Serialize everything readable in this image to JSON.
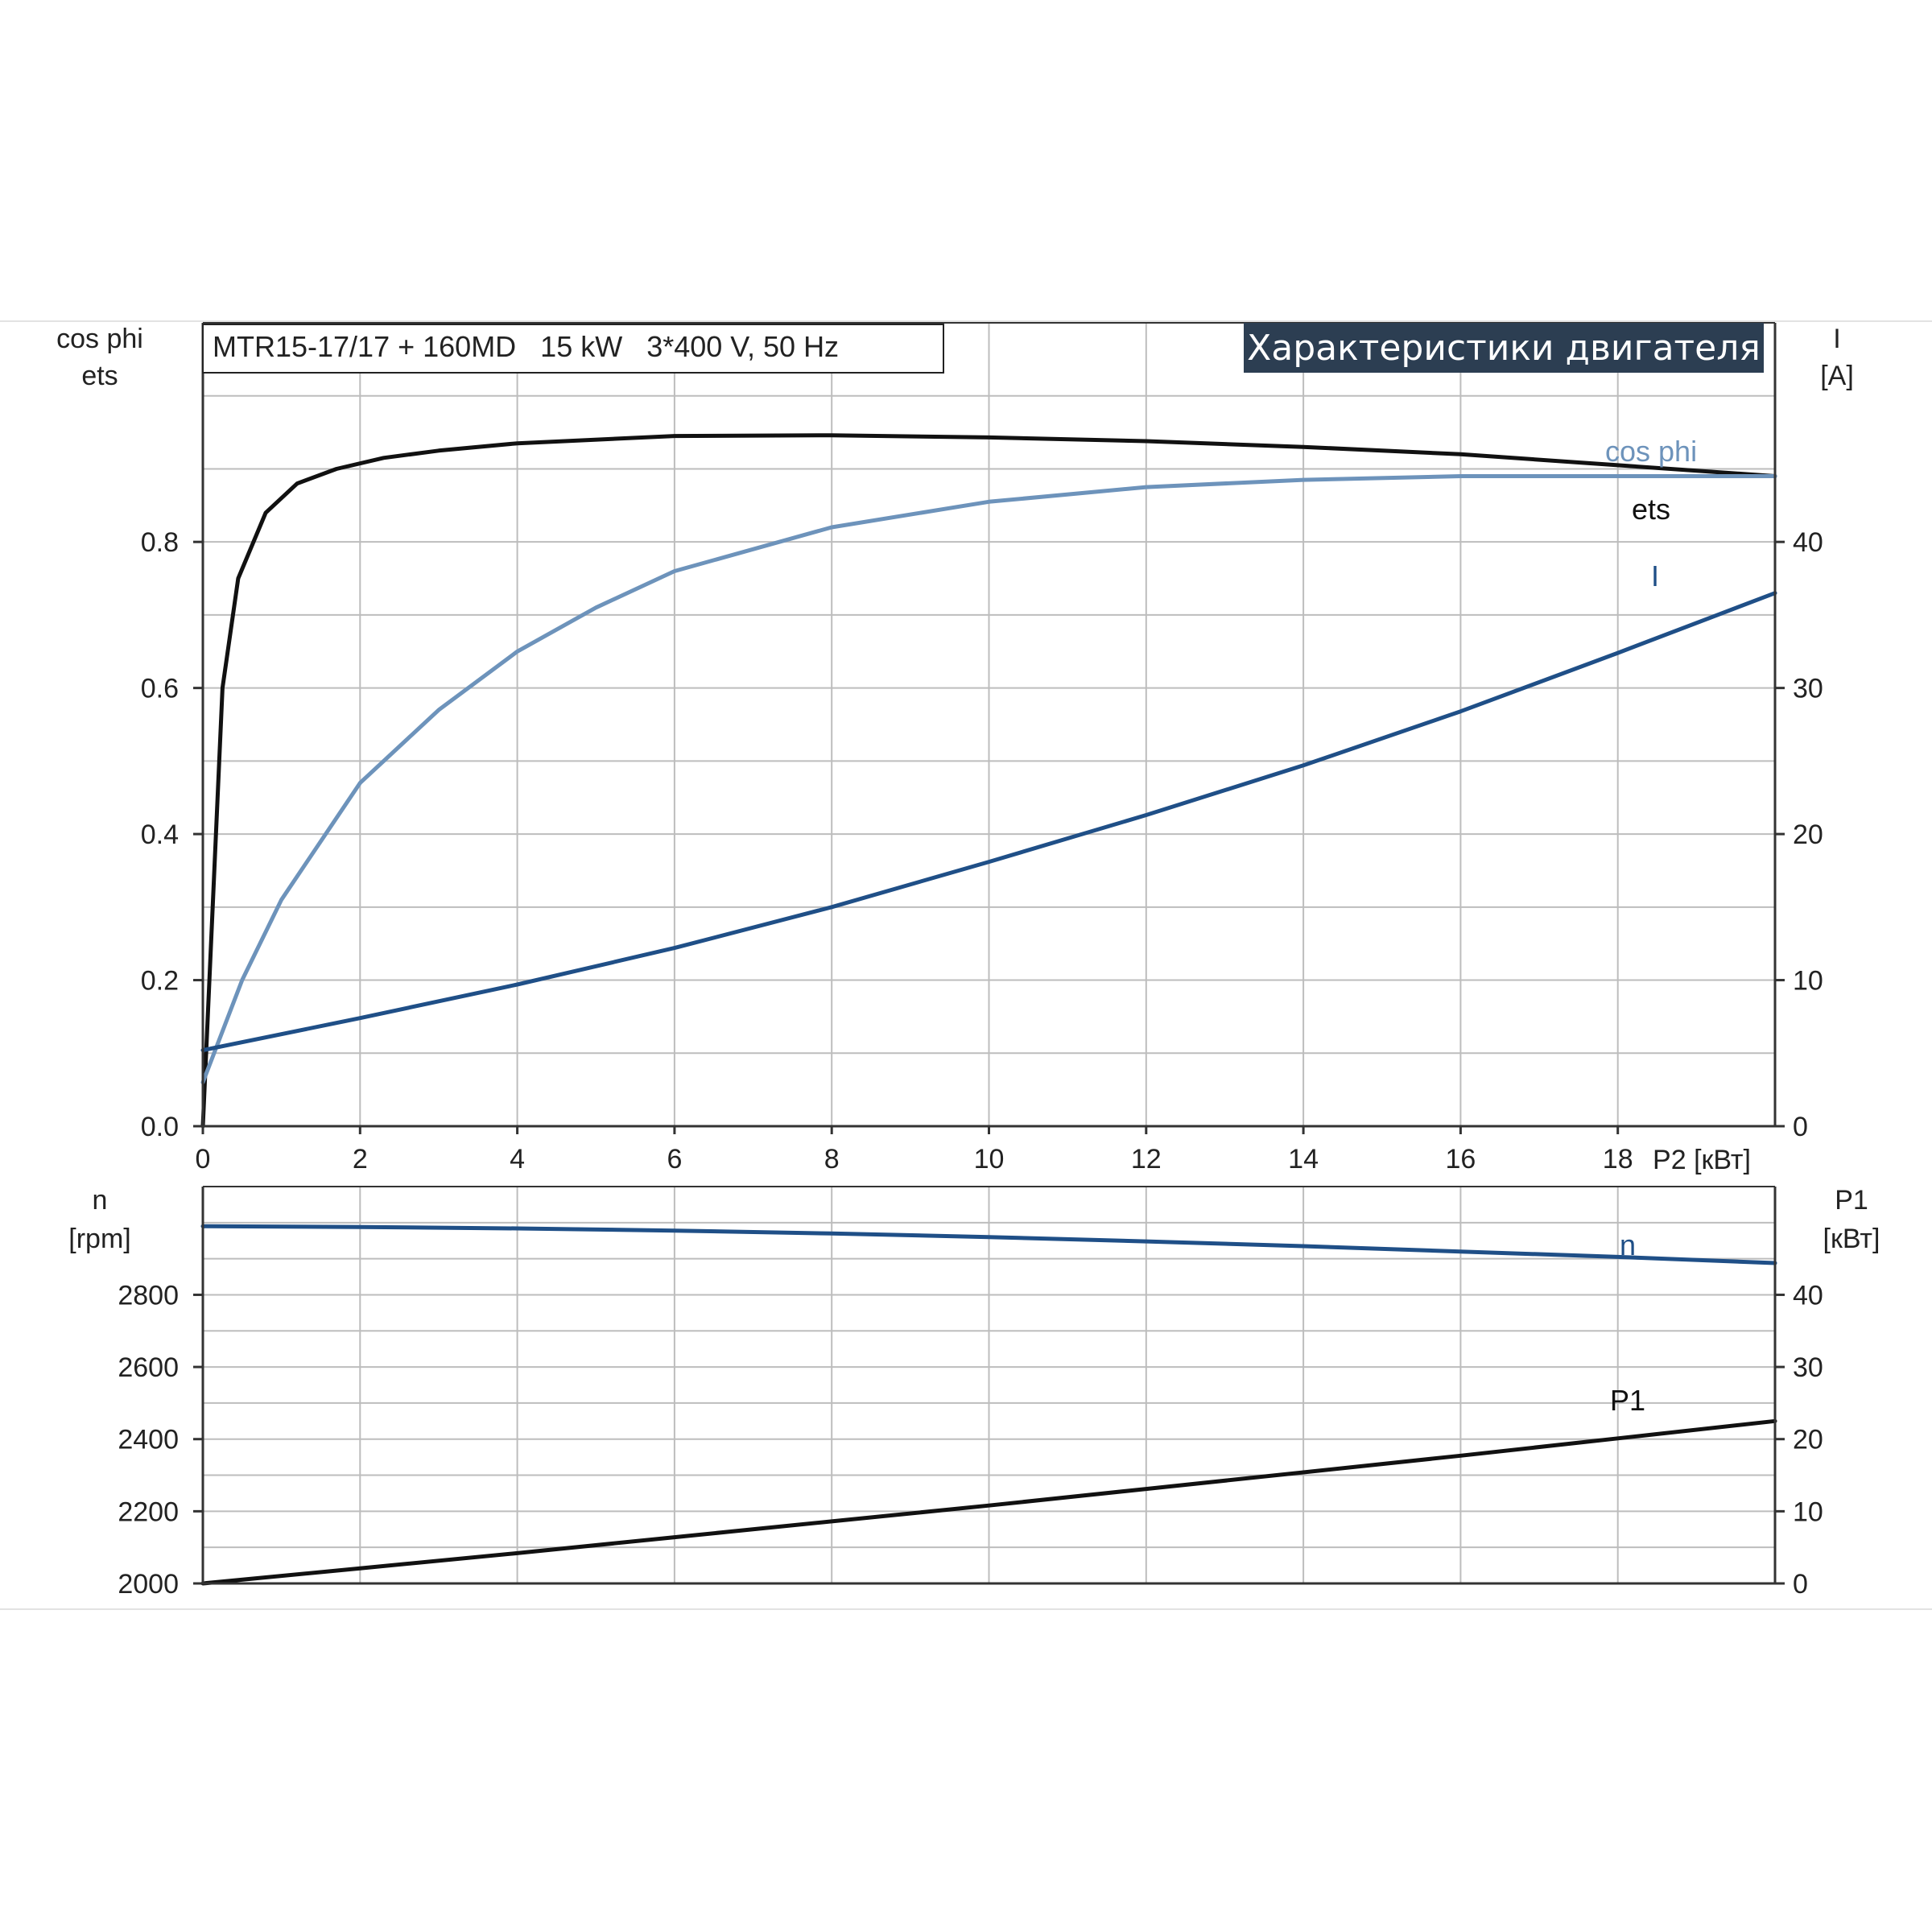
{
  "chart_data": [
    {
      "type": "line",
      "info_box": "MTR15-17/17 + 160MD   15 kW   3*400 V, 50 Hz",
      "banner": "Характеристики двигателя",
      "x": [
        0,
        0.5,
        1,
        2,
        3,
        4,
        5,
        6,
        8,
        10,
        12,
        14,
        16,
        18,
        20
      ],
      "xlim": [
        0,
        20
      ],
      "x_ticks": [
        "0",
        "2",
        "4",
        "6",
        "8",
        "10",
        "12",
        "14",
        "16",
        "18"
      ],
      "xlabel": "P2 [кВт]",
      "ylabel_left": [
        "cos phi",
        "ets"
      ],
      "ylim_left": [
        0,
        1.1
      ],
      "y_ticks_left": [
        "0.0",
        "0.2",
        "0.4",
        "0.6",
        "0.8"
      ],
      "ylabel_right": [
        "I",
        "[A]"
      ],
      "ylim_right": [
        0,
        55
      ],
      "y_ticks_right": [
        "0",
        "10",
        "20",
        "30",
        "40"
      ],
      "grid": true,
      "series": [
        {
          "name": "ets",
          "axis": "left",
          "color": "#111111",
          "x": [
            0,
            0.25,
            0.45,
            0.8,
            1.2,
            1.7,
            2.3,
            3,
            4,
            6,
            8,
            10,
            12,
            14,
            16,
            18,
            20
          ],
          "values": [
            0,
            0.6,
            0.75,
            0.84,
            0.88,
            0.9,
            0.915,
            0.925,
            0.935,
            0.945,
            0.946,
            0.943,
            0.938,
            0.93,
            0.92,
            0.905,
            0.89
          ]
        },
        {
          "name": "cos phi",
          "axis": "left",
          "color": "#6d93bb",
          "x": [
            0,
            0.5,
            1,
            2,
            3,
            4,
            5,
            6,
            8,
            10,
            12,
            14,
            16,
            18,
            20
          ],
          "values": [
            0.06,
            0.2,
            0.31,
            0.47,
            0.57,
            0.65,
            0.71,
            0.76,
            0.82,
            0.855,
            0.875,
            0.885,
            0.89,
            0.89,
            0.89
          ]
        },
        {
          "name": "I",
          "axis": "right",
          "color": "#1f4f87",
          "x": [
            0,
            2,
            4,
            6,
            8,
            10,
            12,
            14,
            16,
            18,
            20
          ],
          "values": [
            5.2,
            7.4,
            9.7,
            12.2,
            15,
            18.1,
            21.3,
            24.7,
            28.4,
            32.4,
            36.5
          ]
        }
      ]
    },
    {
      "type": "line",
      "x": [
        0,
        2,
        4,
        6,
        8,
        10,
        12,
        14,
        16,
        18,
        20
      ],
      "xlim": [
        0,
        20
      ],
      "ylabel_left": [
        "n",
        "[rpm]"
      ],
      "ylim_left": [
        2000,
        3100
      ],
      "y_ticks_left": [
        "2000",
        "2200",
        "2400",
        "2600",
        "2800"
      ],
      "ylabel_right": [
        "P1",
        "[кВт]"
      ],
      "ylim_right": [
        0,
        55
      ],
      "y_ticks_right": [
        "0",
        "10",
        "20",
        "30",
        "40"
      ],
      "grid": true,
      "series": [
        {
          "name": "n",
          "axis": "left",
          "color": "#1f4f87",
          "x": [
            0,
            2,
            4,
            6,
            8,
            10,
            12,
            14,
            16,
            18,
            20
          ],
          "values": [
            2990,
            2988,
            2984,
            2978,
            2970,
            2960,
            2948,
            2935,
            2920,
            2905,
            2888
          ]
        },
        {
          "name": "P1",
          "axis": "right",
          "color": "#111111",
          "x": [
            0,
            2,
            4,
            6,
            8,
            10,
            12,
            14,
            16,
            18,
            20
          ],
          "values": [
            0,
            2.1,
            4.2,
            6.4,
            8.6,
            10.8,
            13.1,
            15.4,
            17.7,
            20.1,
            22.5
          ]
        }
      ]
    }
  ]
}
